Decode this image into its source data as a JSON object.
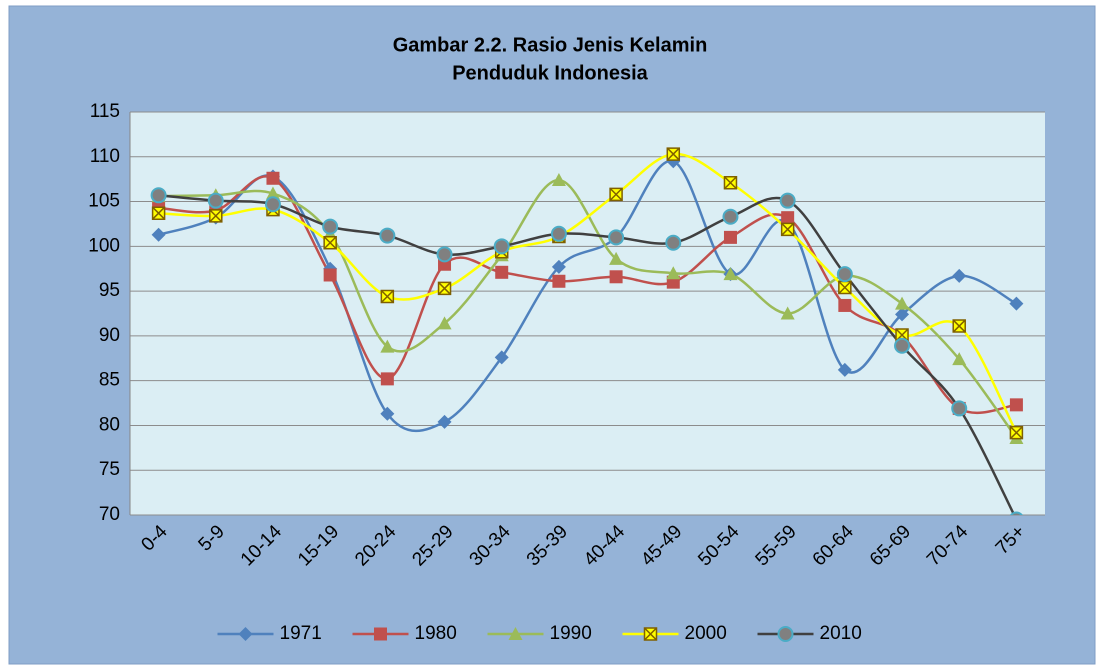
{
  "chart_data": {
    "type": "line",
    "title": [
      "Gambar 2.2. Rasio Jenis Kelamin",
      "Penduduk Indonesia"
    ],
    "categories": [
      "0-4",
      "5-9",
      "10-14",
      "15-19",
      "20-24",
      "25-29",
      "30-34",
      "35-39",
      "40-44",
      "45-49",
      "50-54",
      "55-59",
      "60-64",
      "65-69",
      "70-74",
      "75+"
    ],
    "series": [
      {
        "name": "1971",
        "color": "#4f81bd",
        "marker": "diamond",
        "values": [
          101.3,
          103.2,
          107.8,
          97.5,
          81.3,
          80.4,
          87.6,
          97.7,
          101.0,
          109.5,
          96.9,
          102.7,
          86.2,
          92.4,
          96.7,
          93.6
        ]
      },
      {
        "name": "1980",
        "color": "#c0504d",
        "marker": "square",
        "values": [
          104.3,
          104.0,
          107.6,
          96.8,
          85.2,
          98.0,
          97.1,
          96.1,
          96.6,
          96.0,
          101.0,
          103.2,
          93.4,
          90.0,
          81.9,
          82.3
        ]
      },
      {
        "name": "1990",
        "color": "#9bbb59",
        "marker": "triangle",
        "values": [
          105.6,
          105.7,
          105.9,
          101.4,
          88.8,
          91.4,
          99.0,
          107.4,
          98.6,
          97.0,
          96.9,
          92.5,
          96.7,
          93.6,
          87.4,
          78.6
        ]
      },
      {
        "name": "2000",
        "color": "#ffff00",
        "marker": "x",
        "values": [
          103.7,
          103.4,
          104.1,
          100.4,
          94.4,
          95.3,
          99.4,
          101.1,
          105.8,
          110.3,
          107.1,
          101.9,
          95.4,
          90.1,
          91.1,
          79.2
        ]
      },
      {
        "name": "2010",
        "color": "#404040",
        "marker": "circle",
        "values": [
          105.7,
          105.1,
          104.7,
          102.2,
          101.2,
          99.1,
          100.0,
          101.4,
          101.0,
          100.4,
          103.3,
          105.1,
          96.9,
          88.9,
          81.9,
          69.5
        ]
      }
    ],
    "ylim": [
      70,
      115
    ],
    "yticks": [
      70,
      75,
      80,
      85,
      90,
      95,
      100,
      105,
      110,
      115
    ],
    "grid": true,
    "smooth": true,
    "legend": "bottom"
  }
}
